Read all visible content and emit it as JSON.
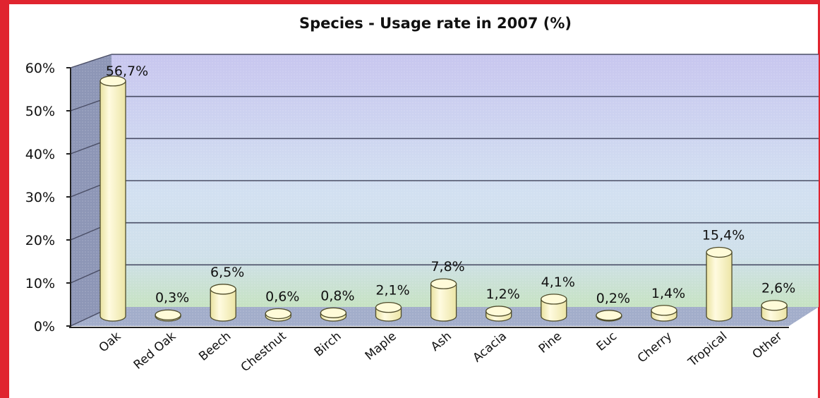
{
  "chart_data": {
    "type": "bar",
    "title": "Species - Usage rate in 2007 (%)",
    "xlabel": "",
    "ylabel": "",
    "ylim": [
      0,
      60
    ],
    "yticks": [
      "0%",
      "10%",
      "20%",
      "30%",
      "40%",
      "50%",
      "60%"
    ],
    "categories": [
      "Oak",
      "Red Oak",
      "Beech",
      "Chestnut",
      "Birch",
      "Maple",
      "Ash",
      "Acacia",
      "Pine",
      "Euc",
      "Cherry",
      "Tropical",
      "Other"
    ],
    "values": [
      56.7,
      0.3,
      6.5,
      0.6,
      0.8,
      2.1,
      7.8,
      1.2,
      4.1,
      0.2,
      1.4,
      15.4,
      2.6
    ],
    "value_labels": [
      "56,7%",
      "0,3%",
      "6,5%",
      "0,6%",
      "0,8%",
      "2,1%",
      "7,8%",
      "1,2%",
      "4,1%",
      "0,2%",
      "1,4%",
      "15,4%",
      "2,6%"
    ],
    "grid": true,
    "style": "3d-cylinder",
    "colors": {
      "bar_fill": "#f8f2b8",
      "bar_top": "#fffbd9",
      "bar_stroke": "#5a5730",
      "back_wall": "#cfdcef",
      "back_wall_top": "#c9c5ef",
      "floor_band": "#cfe5c8",
      "floor": "#a3aecb",
      "side_wall": "#8f98b5",
      "frame": "#e0242f"
    }
  }
}
